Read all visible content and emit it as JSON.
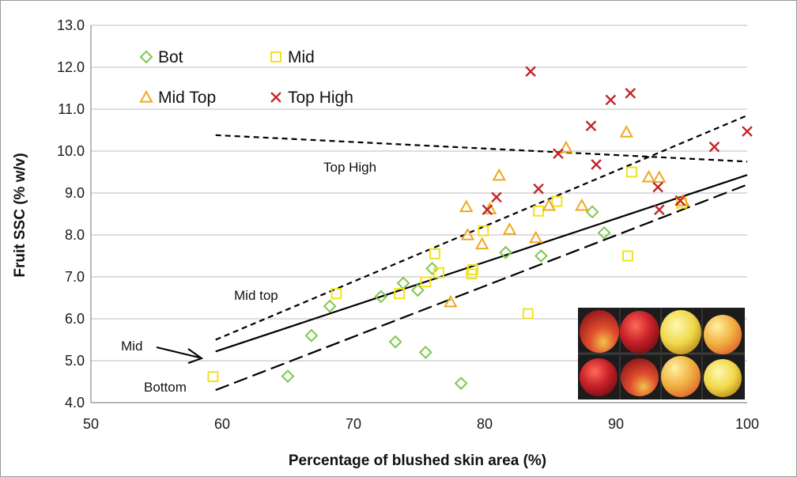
{
  "chart_data": {
    "type": "scatter",
    "xlabel": "Percentage of blushed skin area (%)",
    "ylabel": "Fruit SSC (% w/v)",
    "xlim": [
      50,
      100
    ],
    "ylim": [
      4.0,
      13.0
    ],
    "x_ticks": [
      "50",
      "60",
      "70",
      "80",
      "90",
      "100"
    ],
    "y_ticks": [
      "4.0",
      "5.0",
      "6.0",
      "7.0",
      "8.0",
      "9.0",
      "10.0",
      "11.0",
      "12.0",
      "13.0"
    ],
    "grid": "horizontal",
    "legend": {
      "placement": "top-left"
    },
    "series": [
      {
        "name": "Bot",
        "marker": "diamond",
        "color": "#7ec850",
        "points": [
          [
            65.0,
            4.63
          ],
          [
            66.8,
            5.6
          ],
          [
            68.2,
            6.3
          ],
          [
            72.1,
            6.53
          ],
          [
            73.2,
            5.45
          ],
          [
            73.8,
            6.85
          ],
          [
            74.9,
            6.68
          ],
          [
            75.5,
            5.2
          ],
          [
            76.0,
            7.2
          ],
          [
            78.2,
            4.46
          ],
          [
            81.6,
            7.58
          ],
          [
            84.3,
            7.5
          ],
          [
            88.2,
            8.55
          ],
          [
            89.1,
            8.05
          ]
        ]
      },
      {
        "name": "Mid",
        "marker": "square",
        "color": "#f2e21a",
        "points": [
          [
            59.3,
            4.62
          ],
          [
            68.7,
            6.6
          ],
          [
            73.5,
            6.6
          ],
          [
            75.5,
            6.88
          ],
          [
            76.2,
            7.55
          ],
          [
            76.5,
            7.1
          ],
          [
            79.0,
            7.07
          ],
          [
            79.1,
            7.17
          ],
          [
            79.9,
            8.1
          ],
          [
            83.3,
            6.12
          ],
          [
            84.1,
            8.57
          ],
          [
            85.5,
            8.8
          ],
          [
            90.9,
            7.5
          ],
          [
            91.2,
            9.5
          ],
          [
            95.0,
            8.76
          ]
        ]
      },
      {
        "name": "Mid Top",
        "marker": "triangle",
        "color": "#f0a81c",
        "points": [
          [
            77.4,
            6.4
          ],
          [
            78.6,
            8.67
          ],
          [
            78.7,
            8.0
          ],
          [
            79.8,
            7.78
          ],
          [
            80.4,
            8.62
          ],
          [
            81.1,
            9.42
          ],
          [
            81.9,
            8.13
          ],
          [
            83.9,
            7.93
          ],
          [
            84.9,
            8.7
          ],
          [
            86.2,
            10.08
          ],
          [
            87.4,
            8.7
          ],
          [
            90.8,
            10.45
          ],
          [
            92.5,
            9.38
          ],
          [
            93.3,
            9.37
          ],
          [
            95.1,
            8.81
          ]
        ]
      },
      {
        "name": "Top High",
        "marker": "x",
        "color": "#c0282c",
        "points": [
          [
            80.2,
            8.6
          ],
          [
            80.9,
            8.9
          ],
          [
            83.5,
            11.9
          ],
          [
            84.1,
            9.1
          ],
          [
            85.6,
            9.94
          ],
          [
            88.1,
            10.6
          ],
          [
            88.5,
            9.68
          ],
          [
            89.6,
            11.22
          ],
          [
            91.1,
            11.38
          ],
          [
            93.2,
            9.14
          ],
          [
            93.3,
            8.6
          ],
          [
            94.9,
            8.82
          ],
          [
            97.5,
            10.1
          ],
          [
            100.0,
            10.47
          ]
        ]
      }
    ],
    "trendlines": [
      {
        "label": "Top High",
        "style": "short-dash",
        "x": [
          59.5,
          100
        ],
        "y": [
          10.38,
          9.75
        ]
      },
      {
        "label": "Mid top",
        "style": "short-dash",
        "x": [
          59.5,
          100
        ],
        "y": [
          5.5,
          10.85
        ]
      },
      {
        "label": "Mid",
        "style": "solid",
        "x": [
          59.5,
          100
        ],
        "y": [
          5.22,
          9.43
        ]
      },
      {
        "label": "Bottom",
        "style": "long-dash",
        "x": [
          59.5,
          100
        ],
        "y": [
          4.3,
          9.2
        ]
      }
    ]
  }
}
